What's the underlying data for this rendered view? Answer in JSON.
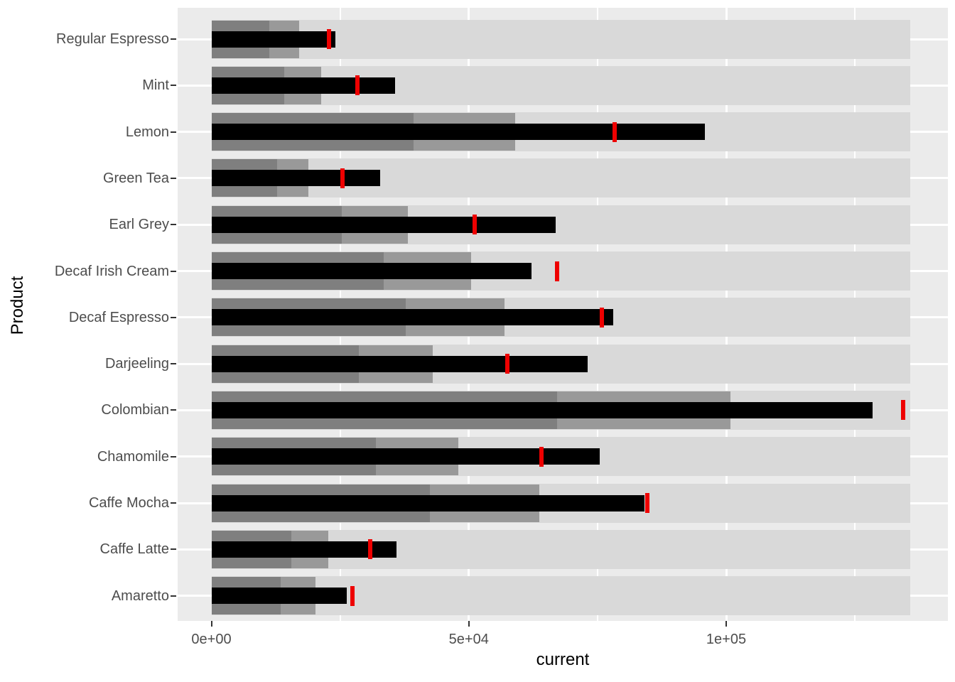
{
  "chart_data": {
    "type": "bar",
    "variant": "bullet-graph",
    "title": "",
    "xlabel": "current",
    "ylabel": "Product",
    "legend": "none",
    "grid": "on",
    "orientation": "horizontal",
    "xlim": [
      -6500,
      143100
    ],
    "x_major_ticks": [
      {
        "label": "0e+00",
        "value": 0
      },
      {
        "label": "5e+04",
        "value": 50000
      },
      {
        "label": "1e+05",
        "value": 100000
      }
    ],
    "x_major_gridlines": [
      50000,
      100000
    ],
    "x_minor_gridlines": [
      25000,
      75000,
      125000
    ],
    "range_max": 135700,
    "categories": [
      "Regular Espresso",
      "Mint",
      "Lemon",
      "Green Tea",
      "Earl Grey",
      "Decaf Irish Cream",
      "Decaf Espresso",
      "Darjeeling",
      "Colombian",
      "Chamomile",
      "Caffe Mocha",
      "Caffe Latte",
      "Amaretto"
    ],
    "series": [
      {
        "product": "Regular Espresso",
        "range_inner": 11300,
        "range_mid": 17000,
        "range_outer": 135700,
        "current": 24100,
        "target": 22800
      },
      {
        "product": "Mint",
        "range_inner": 14200,
        "range_mid": 21300,
        "range_outer": 135700,
        "current": 35700,
        "target": 28400
      },
      {
        "product": "Lemon",
        "range_inner": 39200,
        "range_mid": 59000,
        "range_outer": 135700,
        "current": 95800,
        "target": 78300
      },
      {
        "product": "Green Tea",
        "range_inner": 12800,
        "range_mid": 18900,
        "range_outer": 135700,
        "current": 32800,
        "target": 25400
      },
      {
        "product": "Earl Grey",
        "range_inner": 25300,
        "range_mid": 38100,
        "range_outer": 135700,
        "current": 66900,
        "target": 51100
      },
      {
        "product": "Decaf Irish Cream",
        "range_inner": 33500,
        "range_mid": 50400,
        "range_outer": 135700,
        "current": 62200,
        "target": 67200
      },
      {
        "product": "Decaf Espresso",
        "range_inner": 37800,
        "range_mid": 56900,
        "range_outer": 135700,
        "current": 78100,
        "target": 75900
      },
      {
        "product": "Darjeeling",
        "range_inner": 28600,
        "range_mid": 43000,
        "range_outer": 135700,
        "current": 73100,
        "target": 57500
      },
      {
        "product": "Colombian",
        "range_inner": 67200,
        "range_mid": 100800,
        "range_outer": 135700,
        "current": 128400,
        "target": 134400
      },
      {
        "product": "Chamomile",
        "range_inner": 31900,
        "range_mid": 48000,
        "range_outer": 135700,
        "current": 75500,
        "target": 64100
      },
      {
        "product": "Caffe Mocha",
        "range_inner": 42500,
        "range_mid": 63700,
        "range_outer": 135700,
        "current": 84100,
        "target": 84700
      },
      {
        "product": "Caffe Latte",
        "range_inner": 15500,
        "range_mid": 22700,
        "range_outer": 135700,
        "current": 35900,
        "target": 30800
      },
      {
        "product": "Amaretto",
        "range_inner": 13500,
        "range_mid": 20200,
        "range_outer": 135700,
        "current": 26300,
        "target": 27400
      }
    ],
    "colors": {
      "panel_background": "#EBEBEB",
      "gridline": "#FFFFFF",
      "range_outer": "#D9D9D9",
      "range_mid": "#999999",
      "range_inner": "#7F7F7F",
      "measure_bar": "#000000",
      "target_tick": "#EE0000",
      "axis_text": "#4D4D4D",
      "axis_title": "#000000",
      "axis_tick_mark": "#333333"
    }
  }
}
